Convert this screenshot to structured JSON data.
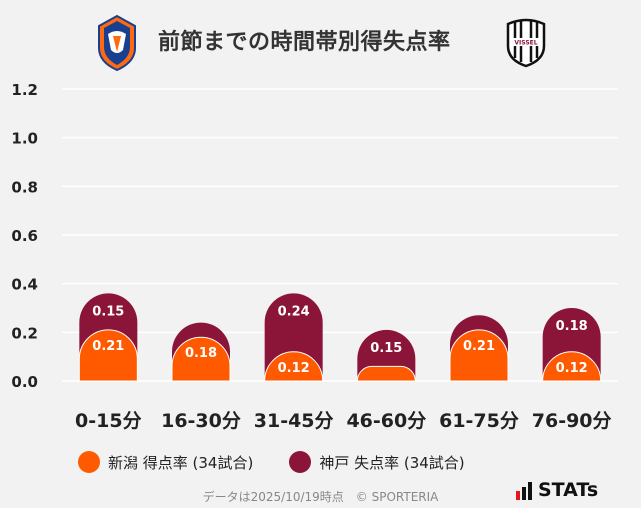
{
  "header": {
    "title": "前節までの時間帯別得失点率",
    "home_crest_icon": "albirex-niigata-crest-icon",
    "away_crest_icon": "vissel-kobe-crest-icon",
    "away_crest_text": "VISSEL"
  },
  "colors": {
    "home": "#ff5a00",
    "away": "#8a1538",
    "grid": "#ffffff",
    "axis_text": "#222222"
  },
  "chart_data": {
    "type": "bar",
    "title": "前節までの時間帯別得失点率",
    "categories": [
      "0-15分",
      "16-30分",
      "31-45分",
      "46-60分",
      "61-75分",
      "76-90分"
    ],
    "series": [
      {
        "name": "新潟 得点率 (34試合)",
        "values": [
          0.21,
          0.18,
          0.12,
          0.06,
          0.21,
          0.12
        ],
        "labels": [
          "0.21",
          "0.18",
          "0.12",
          "",
          "0.21",
          "0.12"
        ]
      },
      {
        "name": "神戸 失点率 (34試合)",
        "values": [
          0.15,
          0.06,
          0.24,
          0.15,
          0.06,
          0.18
        ],
        "labels": [
          "0.15",
          "",
          "0.24",
          "0.15",
          "",
          "0.18"
        ]
      }
    ],
    "yticks": [
      "0.0",
      "0.2",
      "0.4",
      "0.6",
      "0.8",
      "1.0",
      "1.2"
    ],
    "ylim": [
      0,
      1.2
    ],
    "grid": true,
    "legend_position": "bottom-left"
  },
  "footer": {
    "note": "データは2025/10/19時点　© SPORTERIA",
    "brand": "STATs"
  }
}
